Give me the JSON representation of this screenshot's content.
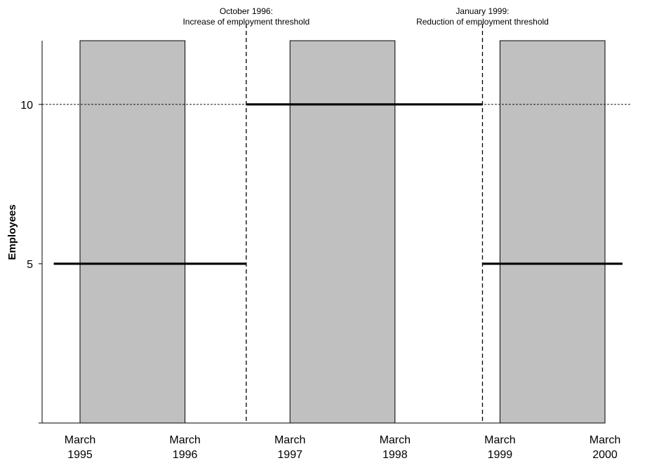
{
  "chart_data": {
    "type": "line",
    "title": "",
    "xlabel": "",
    "ylabel": "Employees",
    "ylim": [
      0,
      12
    ],
    "y_ticks": [
      {
        "value": 5,
        "label": "5"
      },
      {
        "value": 10,
        "label": "10"
      }
    ],
    "x_ticks": [
      {
        "date": "1995-03",
        "line1": "March",
        "line2": "1995"
      },
      {
        "date": "1996-03",
        "line1": "March",
        "line2": "1996"
      },
      {
        "date": "1997-03",
        "line1": "March",
        "line2": "1997"
      },
      {
        "date": "1998-03",
        "line1": "March",
        "line2": "1998"
      },
      {
        "date": "1999-03",
        "line1": "March",
        "line2": "1999"
      },
      {
        "date": "2000-03",
        "line1": "March",
        "line2": "2000"
      }
    ],
    "reference_line": {
      "value": 10,
      "style": "dotted"
    },
    "shaded_periods": [
      {
        "start": "1995-03",
        "end": "1996-03"
      },
      {
        "start": "1997-03",
        "end": "1998-03"
      },
      {
        "start": "1999-03",
        "end": "2000-03"
      }
    ],
    "series": [
      {
        "segments": [
          {
            "start": "1994-12",
            "end": "1996-10",
            "value": 5
          },
          {
            "start": "1996-10",
            "end": "1999-01",
            "value": 10
          },
          {
            "start": "1999-01",
            "end": "2000-05",
            "value": 5
          }
        ]
      }
    ],
    "annotations": [
      {
        "date": "1996-10",
        "line1": "October 1996:",
        "line2": "Increase of employment threshold"
      },
      {
        "date": "1999-01",
        "line1": "January 1999:",
        "line2": "Reduction of employment threshold"
      }
    ],
    "colors": {
      "shade": "#c0c0c0",
      "line": "#000000"
    }
  }
}
